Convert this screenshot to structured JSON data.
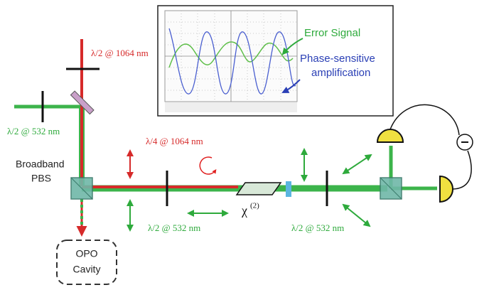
{
  "scope": {
    "error_signal": "Error Signal",
    "psa_line1": "Phase-sensitive",
    "psa_line2": "amplification"
  },
  "labels": {
    "hwp_1064": "λ/2 @ 1064 nm",
    "hwp_532_left": "λ/2 @ 532 nm",
    "pbs_line1": "Broadband",
    "pbs_line2": "PBS",
    "qwp_1064": "λ/4 @ 1064 nm",
    "hwp_532_mid": "λ/2 @ 532 nm",
    "chi": "χ",
    "chi_order": "(2)",
    "hwp_532_right": "λ/2 @ 532 nm"
  },
  "opo": {
    "line1": "OPO",
    "line2": "Cavity"
  }
}
